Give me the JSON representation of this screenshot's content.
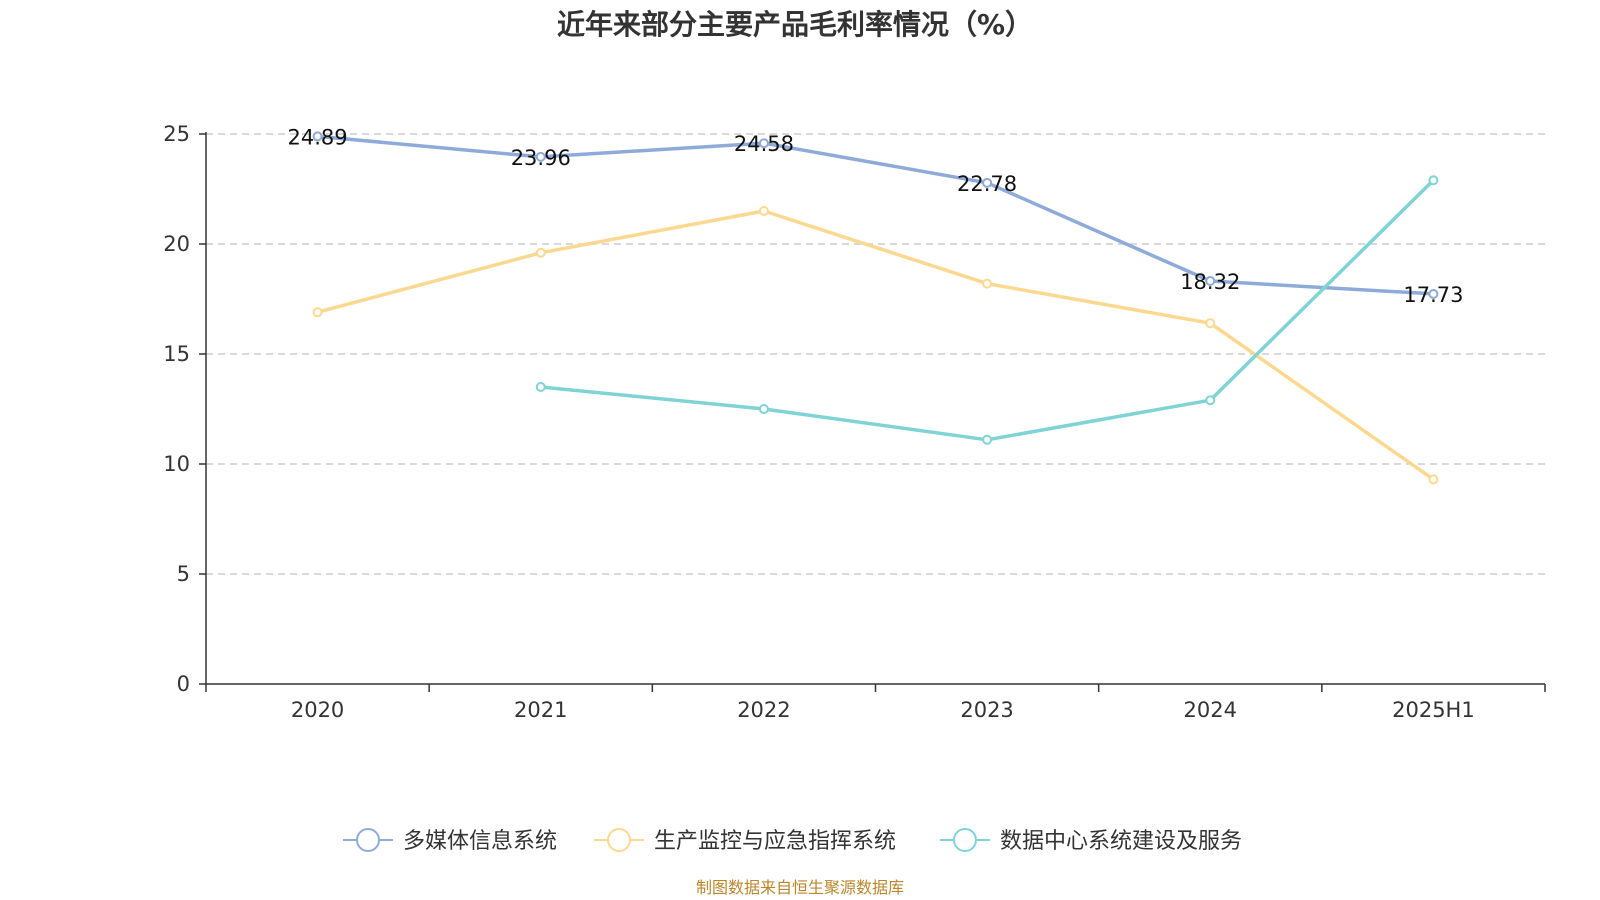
{
  "chart_data": {
    "type": "line",
    "title": "近年来部分主要产品毛利率情况（%）",
    "categories": [
      "2020",
      "2021",
      "2022",
      "2023",
      "2024",
      "2025H1"
    ],
    "ylim": [
      0,
      25
    ],
    "yticks": [
      0,
      5,
      10,
      15,
      20,
      25
    ],
    "grid": true,
    "legend_position": "bottom",
    "series": [
      {
        "name": "多媒体信息系统",
        "color": "#8eaad8",
        "values": [
          24.89,
          23.96,
          24.58,
          22.78,
          18.32,
          17.73
        ],
        "labels": true
      },
      {
        "name": "生产监控与应急指挥系统",
        "color": "#fbd890",
        "values": [
          16.9,
          19.6,
          21.5,
          18.2,
          16.4,
          9.3
        ],
        "labels": false
      },
      {
        "name": "数据中心系统建设及服务",
        "color": "#7fd3d4",
        "values": [
          null,
          13.5,
          12.5,
          11.1,
          12.9,
          22.9
        ],
        "labels": false
      }
    ]
  },
  "source_text": "制图数据来自恒生聚源数据库"
}
